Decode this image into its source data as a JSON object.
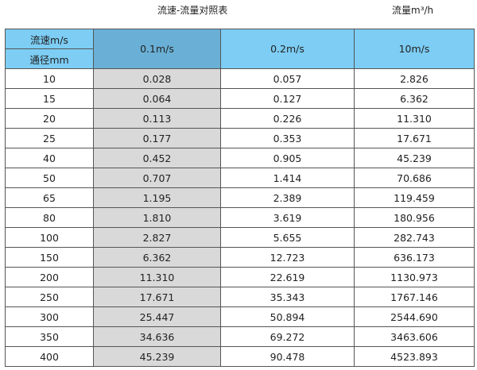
{
  "title": "流速-流量对照表",
  "unit_label": "流量m³/h",
  "header": {
    "velocity_label": "流速m/s",
    "diameter_label": "通径mm",
    "columns": [
      "0.1m/s",
      "0.2m/s",
      "10m/s"
    ]
  },
  "colors": {
    "header": "#7dcdf4",
    "header_selected": "#6ab0d6",
    "highlight_column": "#d9d9d9"
  },
  "rows": [
    [
      "10",
      "0.028",
      "0.057",
      "2.826"
    ],
    [
      "15",
      "0.064",
      "0.127",
      "6.362"
    ],
    [
      "20",
      "0.113",
      "0.226",
      "11.310"
    ],
    [
      "25",
      "0.177",
      "0.353",
      "17.671"
    ],
    [
      "40",
      "0.452",
      "0.905",
      "45.239"
    ],
    [
      "50",
      "0.707",
      "1.414",
      "70.686"
    ],
    [
      "65",
      "1.195",
      "2.389",
      "119.459"
    ],
    [
      "80",
      "1.810",
      "3.619",
      "180.956"
    ],
    [
      "100",
      "2.827",
      "5.655",
      "282.743"
    ],
    [
      "150",
      "6.362",
      "12.723",
      "636.173"
    ],
    [
      "200",
      "11.310",
      "22.619",
      "1130.973"
    ],
    [
      "250",
      "17.671",
      "35.343",
      "1767.146"
    ],
    [
      "300",
      "25.447",
      "50.894",
      "2544.690"
    ],
    [
      "350",
      "34.636",
      "69.272",
      "3463.606"
    ],
    [
      "400",
      "45.239",
      "90.478",
      "4523.893"
    ]
  ]
}
